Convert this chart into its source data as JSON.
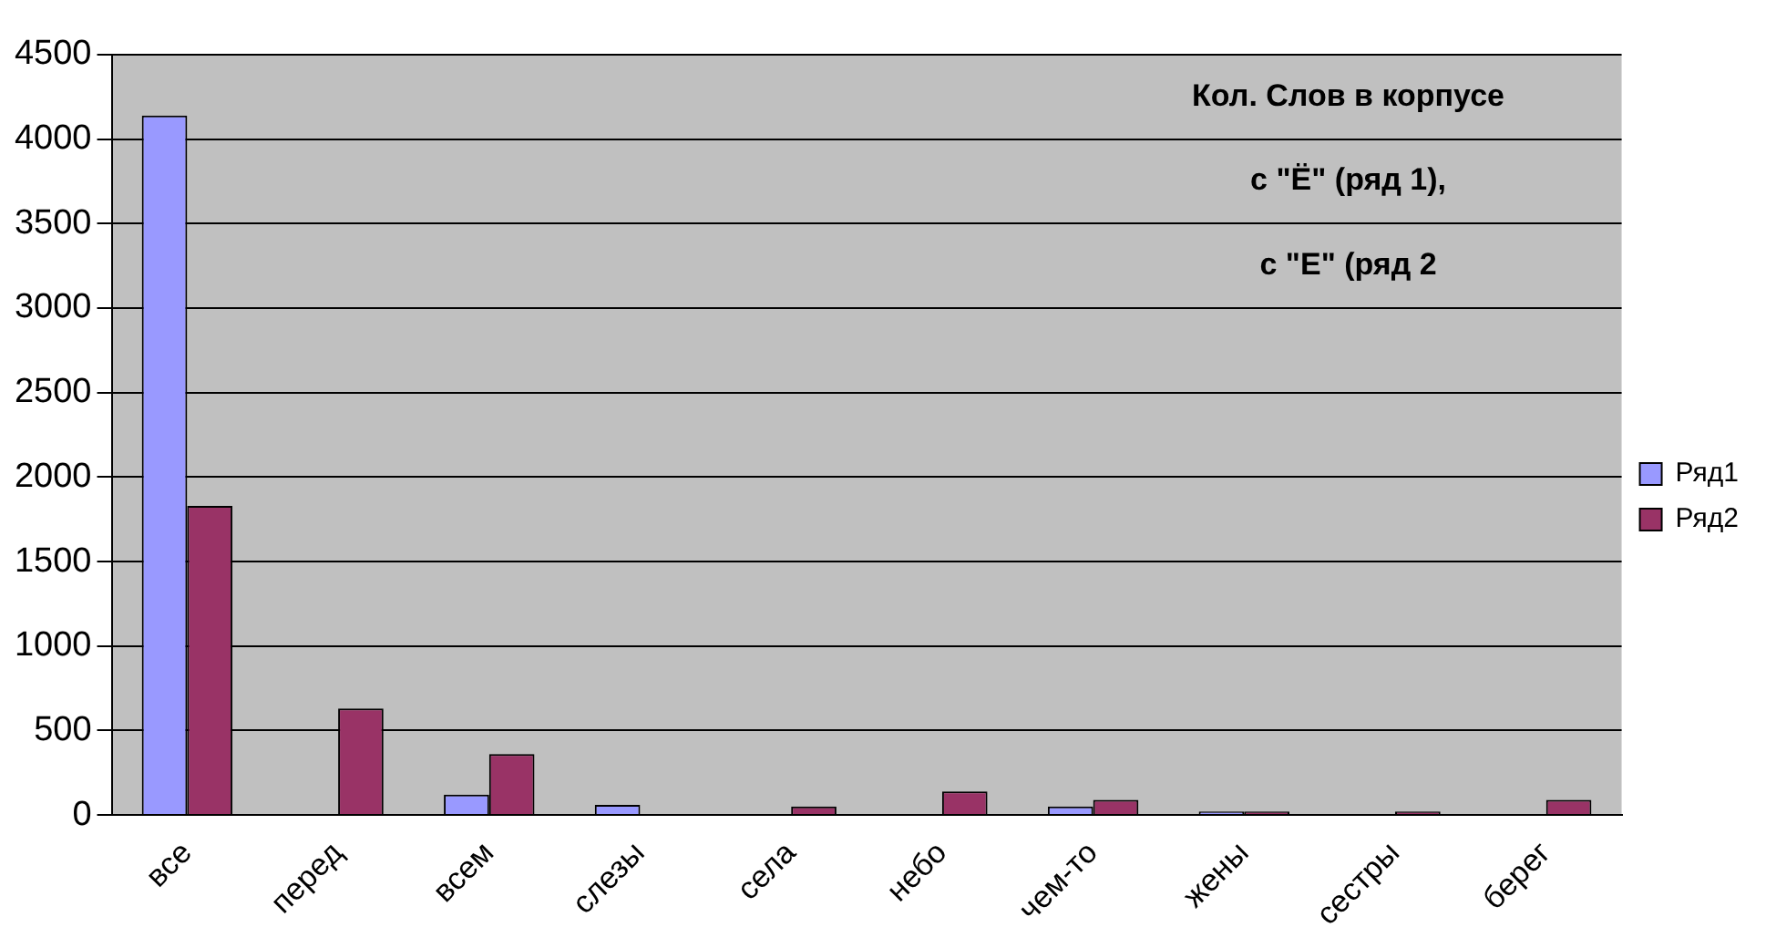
{
  "chart_data": {
    "type": "bar",
    "title": "Кол. Слов в корпусе\nс \"Ё\" (ряд 1),\nс \"Е\" (ряд 2",
    "categories": [
      "все",
      "перед",
      "всем",
      "слезы",
      "села",
      "небо",
      "чем-то",
      "жены",
      "сестры",
      "берег"
    ],
    "series": [
      {
        "name": "Ряд1",
        "color": "#9999ff",
        "values": [
          4140,
          0,
          120,
          60,
          0,
          0,
          50,
          20,
          0,
          0
        ]
      },
      {
        "name": "Ряд2",
        "color": "#993366",
        "values": [
          1830,
          630,
          360,
          0,
          50,
          140,
          90,
          20,
          20,
          90
        ]
      }
    ],
    "ylim": [
      0,
      4500
    ],
    "yticks": [
      0,
      500,
      1000,
      1500,
      2000,
      2500,
      3000,
      3500,
      4000,
      4500
    ],
    "grid": "y",
    "legend": "right"
  }
}
